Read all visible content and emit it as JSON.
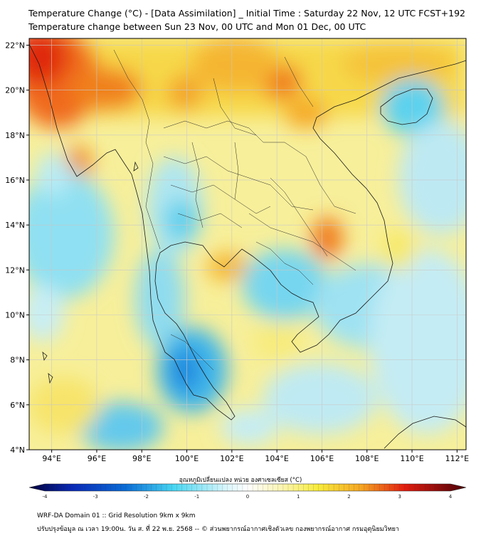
{
  "header": {
    "title_line1": "Temperature Change (°C) - [Data Assimilation] _ Initial Time : Saturday 22 Nov, 12 UTC FCST+192",
    "title_line2": "Temperature change between Sun 23 Nov, 00 UTC and Mon 01 Dec, 00 UTC"
  },
  "map": {
    "lat_labels": [
      "22°N",
      "20°N",
      "18°N",
      "16°N",
      "14°N",
      "12°N",
      "10°N",
      "8°N",
      "6°N",
      "4°N"
    ],
    "lat_values": [
      22,
      20,
      18,
      16,
      14,
      12,
      10,
      8,
      6,
      4
    ],
    "lon_labels": [
      "94°E",
      "96°E",
      "98°E",
      "100°E",
      "102°E",
      "104°E",
      "106°E",
      "108°E",
      "110°E",
      "112°E"
    ],
    "lon_values": [
      94,
      96,
      98,
      100,
      102,
      104,
      106,
      108,
      110,
      112
    ],
    "lon_range": [
      93.0,
      112.4
    ],
    "lat_range": [
      4.0,
      22.3
    ]
  },
  "colorbar": {
    "title": "อุณหภูมิเปลี่ยนแปลง หน่วย องศาเซลเซียส (°C)",
    "tick_labels": [
      "-4",
      "-3",
      "-2",
      "-1",
      "0",
      "1",
      "2",
      "3",
      "4"
    ],
    "tick_values": [
      -4,
      -3,
      -2,
      -1,
      0,
      1,
      2,
      3,
      4
    ],
    "colors": {
      "cold_end": "#00003a",
      "blue": "#0a6cd6",
      "cyan": "#47d6f2",
      "neutral": "#ffffff",
      "yellow": "#f7ec3c",
      "orange": "#f5a623",
      "red": "#e21c0f",
      "warm_end": "#4a0008"
    }
  },
  "footer": {
    "line1": "WRF-DA Domain 01 :: Grid Resolution 9km x 9km",
    "line2": "ปรับปรุงข้อมูล ณ เวลา 19:00น. วัน ส. ที่ 22 พ.ย. 2568 -- © ส่วนพยากรณ์อากาศเชิงตัวเลข กองพยากรณ์อากาศ กรมอุตุนิยมวิทยา"
  }
}
